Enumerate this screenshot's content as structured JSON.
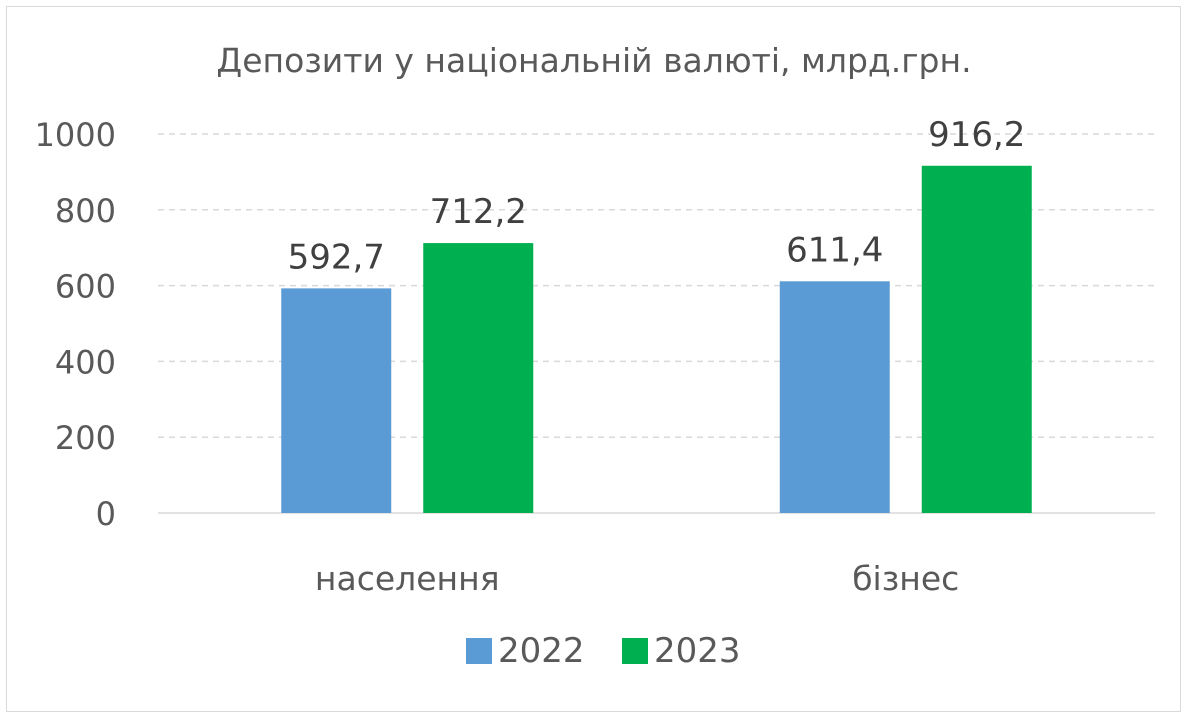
{
  "chart_data": {
    "type": "bar",
    "title": "Депозити у національній валюті, млрд.грн.",
    "xlabel": "",
    "ylabel": "",
    "categories": [
      "населення",
      "бізнес"
    ],
    "series": [
      {
        "name": "2022",
        "values": [
          592.7,
          611.4
        ],
        "labels": [
          "592,7",
          "611,4"
        ],
        "color": "#5b9bd5"
      },
      {
        "name": "2023",
        "values": [
          712.2,
          916.2
        ],
        "labels": [
          "712,2",
          "916,2"
        ],
        "color": "#00b050"
      }
    ],
    "ylim": [
      0,
      1000
    ],
    "yticks": [
      0,
      200,
      400,
      600,
      800,
      1000
    ],
    "grid": true,
    "gridline_style": "dashed",
    "legend_position": "bottom"
  }
}
